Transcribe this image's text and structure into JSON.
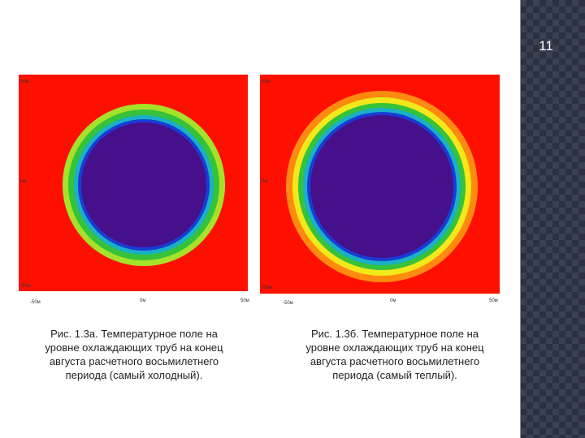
{
  "page_number": "11",
  "figures": [
    {
      "axis_labels": {
        "y": [
          "50м",
          "0м",
          "-50м"
        ],
        "x": [
          "-50м",
          "0м",
          "50м"
        ]
      },
      "caption": [
        "Рис. 1.3а. Температурное поле на",
        "уровне охлаждающих труб на конец",
        "августа расчетного восьмилетнего",
        "периода (самый холодный)."
      ]
    },
    {
      "axis_labels": {
        "y": [
          "50м",
          "0м",
          "-50м"
        ],
        "x": [
          "-50м",
          "0м",
          "50м"
        ]
      },
      "caption": [
        "Рис. 1.3б. Температурное поле на",
        "уровне охлаждающих труб на конец",
        "августа расчетного восьмилетнего",
        "периода (самый теплый)."
      ]
    }
  ]
}
